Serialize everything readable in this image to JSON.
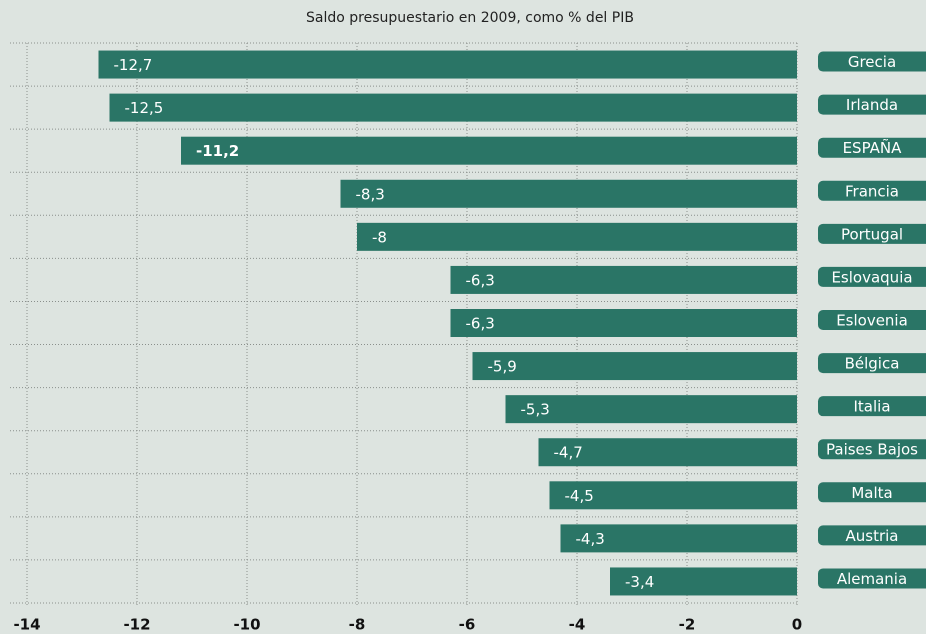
{
  "chart_data": {
    "type": "bar",
    "orientation": "horizontal",
    "title": "Saldo presupuestario en 2009, como % del PIB",
    "categories": [
      "Grecia",
      "Irlanda",
      "ESPAÑA",
      "Francia",
      "Portugal",
      "Eslovaquia",
      "Eslovenia",
      "Bélgica",
      "Italia",
      "Paises Bajos",
      "Malta",
      "Austria",
      "Alemania"
    ],
    "values": [
      -12.7,
      -12.5,
      -11.2,
      -8.3,
      -8,
      -6.3,
      -6.3,
      -5.9,
      -5.3,
      -4.7,
      -4.5,
      -4.3,
      -3.4
    ],
    "value_labels": [
      "-12,7",
      "-12,5",
      "-11,2",
      "-8,3",
      "-8",
      "-6,3",
      "-6,3",
      "-5,9",
      "-5,3",
      "-4,7",
      "-4,5",
      "-4,3",
      "-3,4"
    ],
    "highlight": "ESPAÑA",
    "color": "#2a7566",
    "xlim": [
      -14,
      0
    ],
    "xticks": [
      -14,
      -12,
      -10,
      -8,
      -6,
      -4,
      -2,
      0
    ],
    "grid": true
  }
}
